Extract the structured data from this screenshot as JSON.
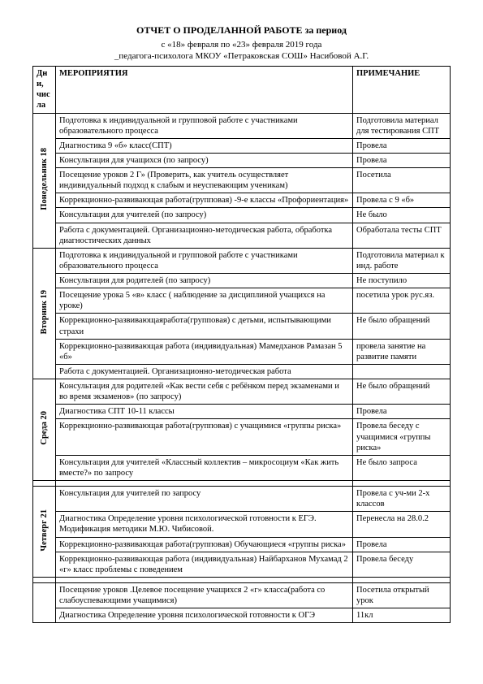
{
  "header": {
    "title": "ОТЧЕТ О ПРОДЕЛАННОЙ РАБОТЕ за период",
    "line1": "с «18» февраля по «23» февраля 2019 года",
    "line2": "_педагога-психолога МКОУ «Петраковская СОШ» Насибовой А.Г."
  },
  "columns": {
    "day": "Дни, числа",
    "activity": "МЕРОПРИЯТИЯ",
    "note": "ПРИМЕЧАНИЕ"
  },
  "days": [
    {
      "label": "Понедельник 18",
      "rows": [
        {
          "a": "Подготовка к индивидуальной и групповой работе с участниками образовательного процесса",
          "n": "Подготовила материал для тестирования СПТ"
        },
        {
          "a": "Диагностика 9 «б» класс(СПТ)",
          "n": "Провела"
        },
        {
          "a": "Консультация для учащихся (по запросу)",
          "n": "Провела"
        },
        {
          "a": "Посещение уроков 2 Г» (Проверить, как учитель осуществляет индивидуальный подход к слабым и неуспевающим ученикам)",
          "n": "Посетила"
        },
        {
          "a": "Коррекционно-развивающая работа(групповая) -9-е классы «Профориентация»",
          "n": "Провела с 9 «б»"
        },
        {
          "a": "Консультация для учителей (по запросу)",
          "n": "Не было"
        },
        {
          "a": "Работа с документацией. Организационно-методическая работа, обработка диагностических данных",
          "n": "Обработала тесты СПТ"
        }
      ]
    },
    {
      "label": "Вторник 19",
      "rows": [
        {
          "a": "Подготовка  к индивидуальной и групповой работе с участниками образовательного процесса",
          "n": "Подготовила материал к инд. работе"
        },
        {
          "a": "Консультация для родителей (по запросу)",
          "n": "Не поступило"
        },
        {
          "a": "Посещение урока 5 «в» класс ( наблюдение за дисциплиной учащихся на уроке)",
          "n": "посетила урок рус.яз."
        },
        {
          "a": "Коррекционно-развивающаяработа(групповая) с детьми, испытывающими страхи",
          "n": "Не было обращений"
        },
        {
          "a": "Коррекционно-развивающая работа (индивидуальная) Мамедханов Рамазан 5 «б»",
          "n": "провела занятие на развитие памяти"
        },
        {
          "a": "Работа с документацией. Организационно-методическая работа",
          "n": ""
        }
      ]
    },
    {
      "label": "Среда 20",
      "rows": [
        {
          "a": "Консультация для родителей «Как вести себя с ребёнком перед экзаменами и во время экзаменов» (по запросу)",
          "n": "Не было обращений"
        },
        {
          "a": "Диагностика  СПТ 10-11 классы",
          "n": "Провела"
        },
        {
          "a": "Коррекционно-развивающая работа(групповая) с учащимися «группы риска»",
          "n": "Провела беседу с учащимися «группы риска»"
        },
        {
          "a": "Консультация для учителей «Классный коллектив – микросоциум «Как жить вместе?» по запросу",
          "n": "Не было запроса"
        }
      ]
    },
    {
      "label": "Четверг  21",
      "rows": [
        {
          "a": "Консультация для учителей по запросу",
          "n": "Провела с уч-ми 2-х классов"
        },
        {
          "a": "Диагностика Определение уровня психологической готовности к ЕГЭ. Модификация методики М.Ю. Чибисовой.",
          "n": "Перенесла на 28.0.2"
        },
        {
          "a": "Коррекционно-развивающая работа(групповая) Обучающиеся «группы риска»",
          "n": "Провела"
        },
        {
          "a": "Коррекционно-развивающая работа (индивидуальная) Найбарханов Мухамад 2 «г» класс проблемы с поведением",
          "n": "Провела беседу"
        }
      ]
    },
    {
      "label": "",
      "rows": [
        {
          "a": "Посещение уроков .Целевое посещение учащихся 2 «г» класса(работа со слабоуспевающими учащимися)",
          "n": "Посетила открытый урок"
        },
        {
          "a": "Диагностика Определение уровня психологической готовности к ОГЭ",
          "n": "11кл"
        }
      ]
    }
  ]
}
